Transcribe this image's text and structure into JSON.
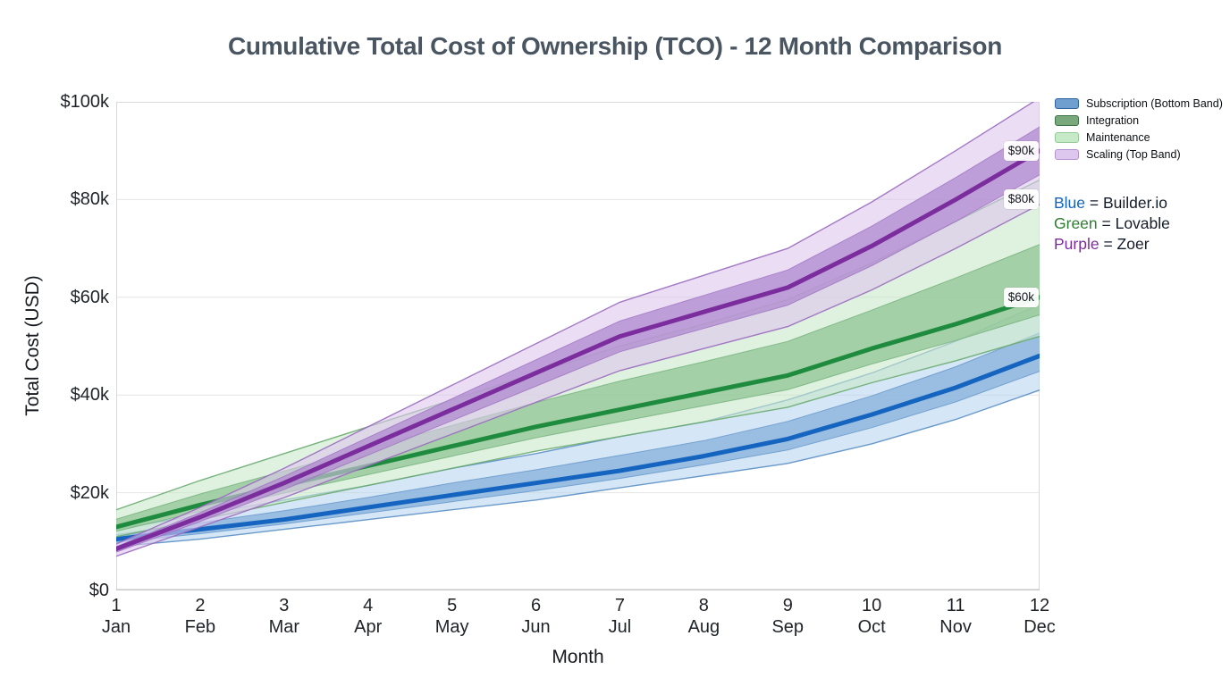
{
  "title": "Cumulative Total Cost of Ownership (TCO) - 12 Month Comparison",
  "chart_data": {
    "type": "line",
    "subtype": "banded-fan-comparison",
    "title": "Cumulative Total Cost of Ownership (TCO) - 12 Month Comparison",
    "xlabel": "Month",
    "ylabel": "Total Cost (USD)",
    "x": [
      1,
      2,
      3,
      4,
      5,
      6,
      7,
      8,
      9,
      10,
      11,
      12
    ],
    "x_tick_labels": [
      {
        "number": "1",
        "month": "Jan"
      },
      {
        "number": "2",
        "month": "Feb"
      },
      {
        "number": "3",
        "month": "Mar"
      },
      {
        "number": "4",
        "month": "Apr"
      },
      {
        "number": "5",
        "month": "May"
      },
      {
        "number": "6",
        "month": "Jun"
      },
      {
        "number": "7",
        "month": "Jul"
      },
      {
        "number": "8",
        "month": "Aug"
      },
      {
        "number": "9",
        "month": "Sep"
      },
      {
        "number": "10",
        "month": "Oct"
      },
      {
        "number": "11",
        "month": "Nov"
      },
      {
        "number": "12",
        "month": "Dec"
      }
    ],
    "ylim_k": [
      0,
      100
    ],
    "y_ticks": [
      {
        "value_k": 0,
        "label": "$0"
      },
      {
        "value_k": 20,
        "label": "$20k"
      },
      {
        "value_k": 40,
        "label": "$40k"
      },
      {
        "value_k": 60,
        "label": "$60k"
      },
      {
        "value_k": 80,
        "label": "$80k"
      },
      {
        "value_k": 100,
        "label": "$100k"
      }
    ],
    "grid": "horizontal",
    "legend_position": "top-right-outside",
    "band_legend": [
      {
        "label": "Subscription (Bottom Band)",
        "fill": "#6f9fcf",
        "border": "#2f639f"
      },
      {
        "label": "Integration",
        "fill": "#7aa87d",
        "border": "#3f7347"
      },
      {
        "label": "Maintenance",
        "fill": "#c6e9c8",
        "border": "#93ca98"
      },
      {
        "label": "Scaling (Top Band)",
        "fill": "#ddc7ee",
        "border": "#b494cf"
      }
    ],
    "color_key": [
      {
        "color_name": "Blue",
        "color": "#1565c0",
        "product": "Builder.io"
      },
      {
        "color_name": "Green",
        "color": "#2e7d32",
        "product": "Lovable"
      },
      {
        "color_name": "Purple",
        "color": "#7b2d9e",
        "product": "Zoer"
      }
    ],
    "series": [
      {
        "name": "Builder.io",
        "color_family": "blue",
        "line_color": "#1565c0",
        "inner_color": "#8ab4dd",
        "outer_color": "#b9d7f0",
        "edge_color": "#5b8fc4",
        "center_total_k": [
          10.5,
          12.5,
          14.5,
          17,
          19.5,
          22,
          24.5,
          27.5,
          31,
          36,
          41.5,
          48
        ],
        "band_top_k": [
          12.5,
          15.5,
          18.5,
          21.5,
          25,
          28,
          31.5,
          34.5,
          39,
          44.5,
          51,
          58.5
        ],
        "band_bottom_k": [
          9,
          10.5,
          12.5,
          14.5,
          16.5,
          18.5,
          21,
          23.5,
          26,
          30,
          35,
          41
        ]
      },
      {
        "name": "Lovable",
        "color_family": "green",
        "line_color": "#1f8b3e",
        "inner_color": "#93c897",
        "outer_color": "#c9e7ca",
        "edge_color": "#6aab70",
        "center_total_k": [
          13,
          17.5,
          21.5,
          25.5,
          29.5,
          33.5,
          37,
          40.5,
          44,
          49.5,
          54.5,
          60
        ],
        "band_top_k": [
          16.5,
          22.5,
          28,
          33.5,
          39,
          44.5,
          50,
          54.5,
          59.5,
          67,
          75.5,
          84
        ],
        "band_bottom_k": [
          11,
          14.5,
          18,
          21.5,
          25,
          28.5,
          31.5,
          34.5,
          37.5,
          42.5,
          47,
          52
        ]
      },
      {
        "name": "Zoer",
        "color_family": "purple",
        "line_color": "#7b2d9e",
        "inner_color": "#b38fd1",
        "outer_color": "#dcc7ec",
        "edge_color": "#9a6cbf",
        "center_total_k": [
          8.5,
          15,
          22,
          29.5,
          37,
          44.5,
          52,
          57,
          62,
          70.5,
          80,
          90
        ],
        "band_top_k": [
          9.5,
          17,
          25,
          33.5,
          42,
          50.5,
          59,
          64.5,
          70,
          79.5,
          90,
          100.8
        ],
        "band_bottom_k": [
          7,
          13,
          19,
          25.5,
          32,
          38.5,
          45,
          49.5,
          54,
          61.5,
          70,
          79
        ]
      }
    ],
    "annotations": [
      {
        "label": "$90k",
        "value_k": 90
      },
      {
        "label": "$80k",
        "value_k": 80
      },
      {
        "label": "$60k",
        "value_k": 60
      }
    ]
  }
}
